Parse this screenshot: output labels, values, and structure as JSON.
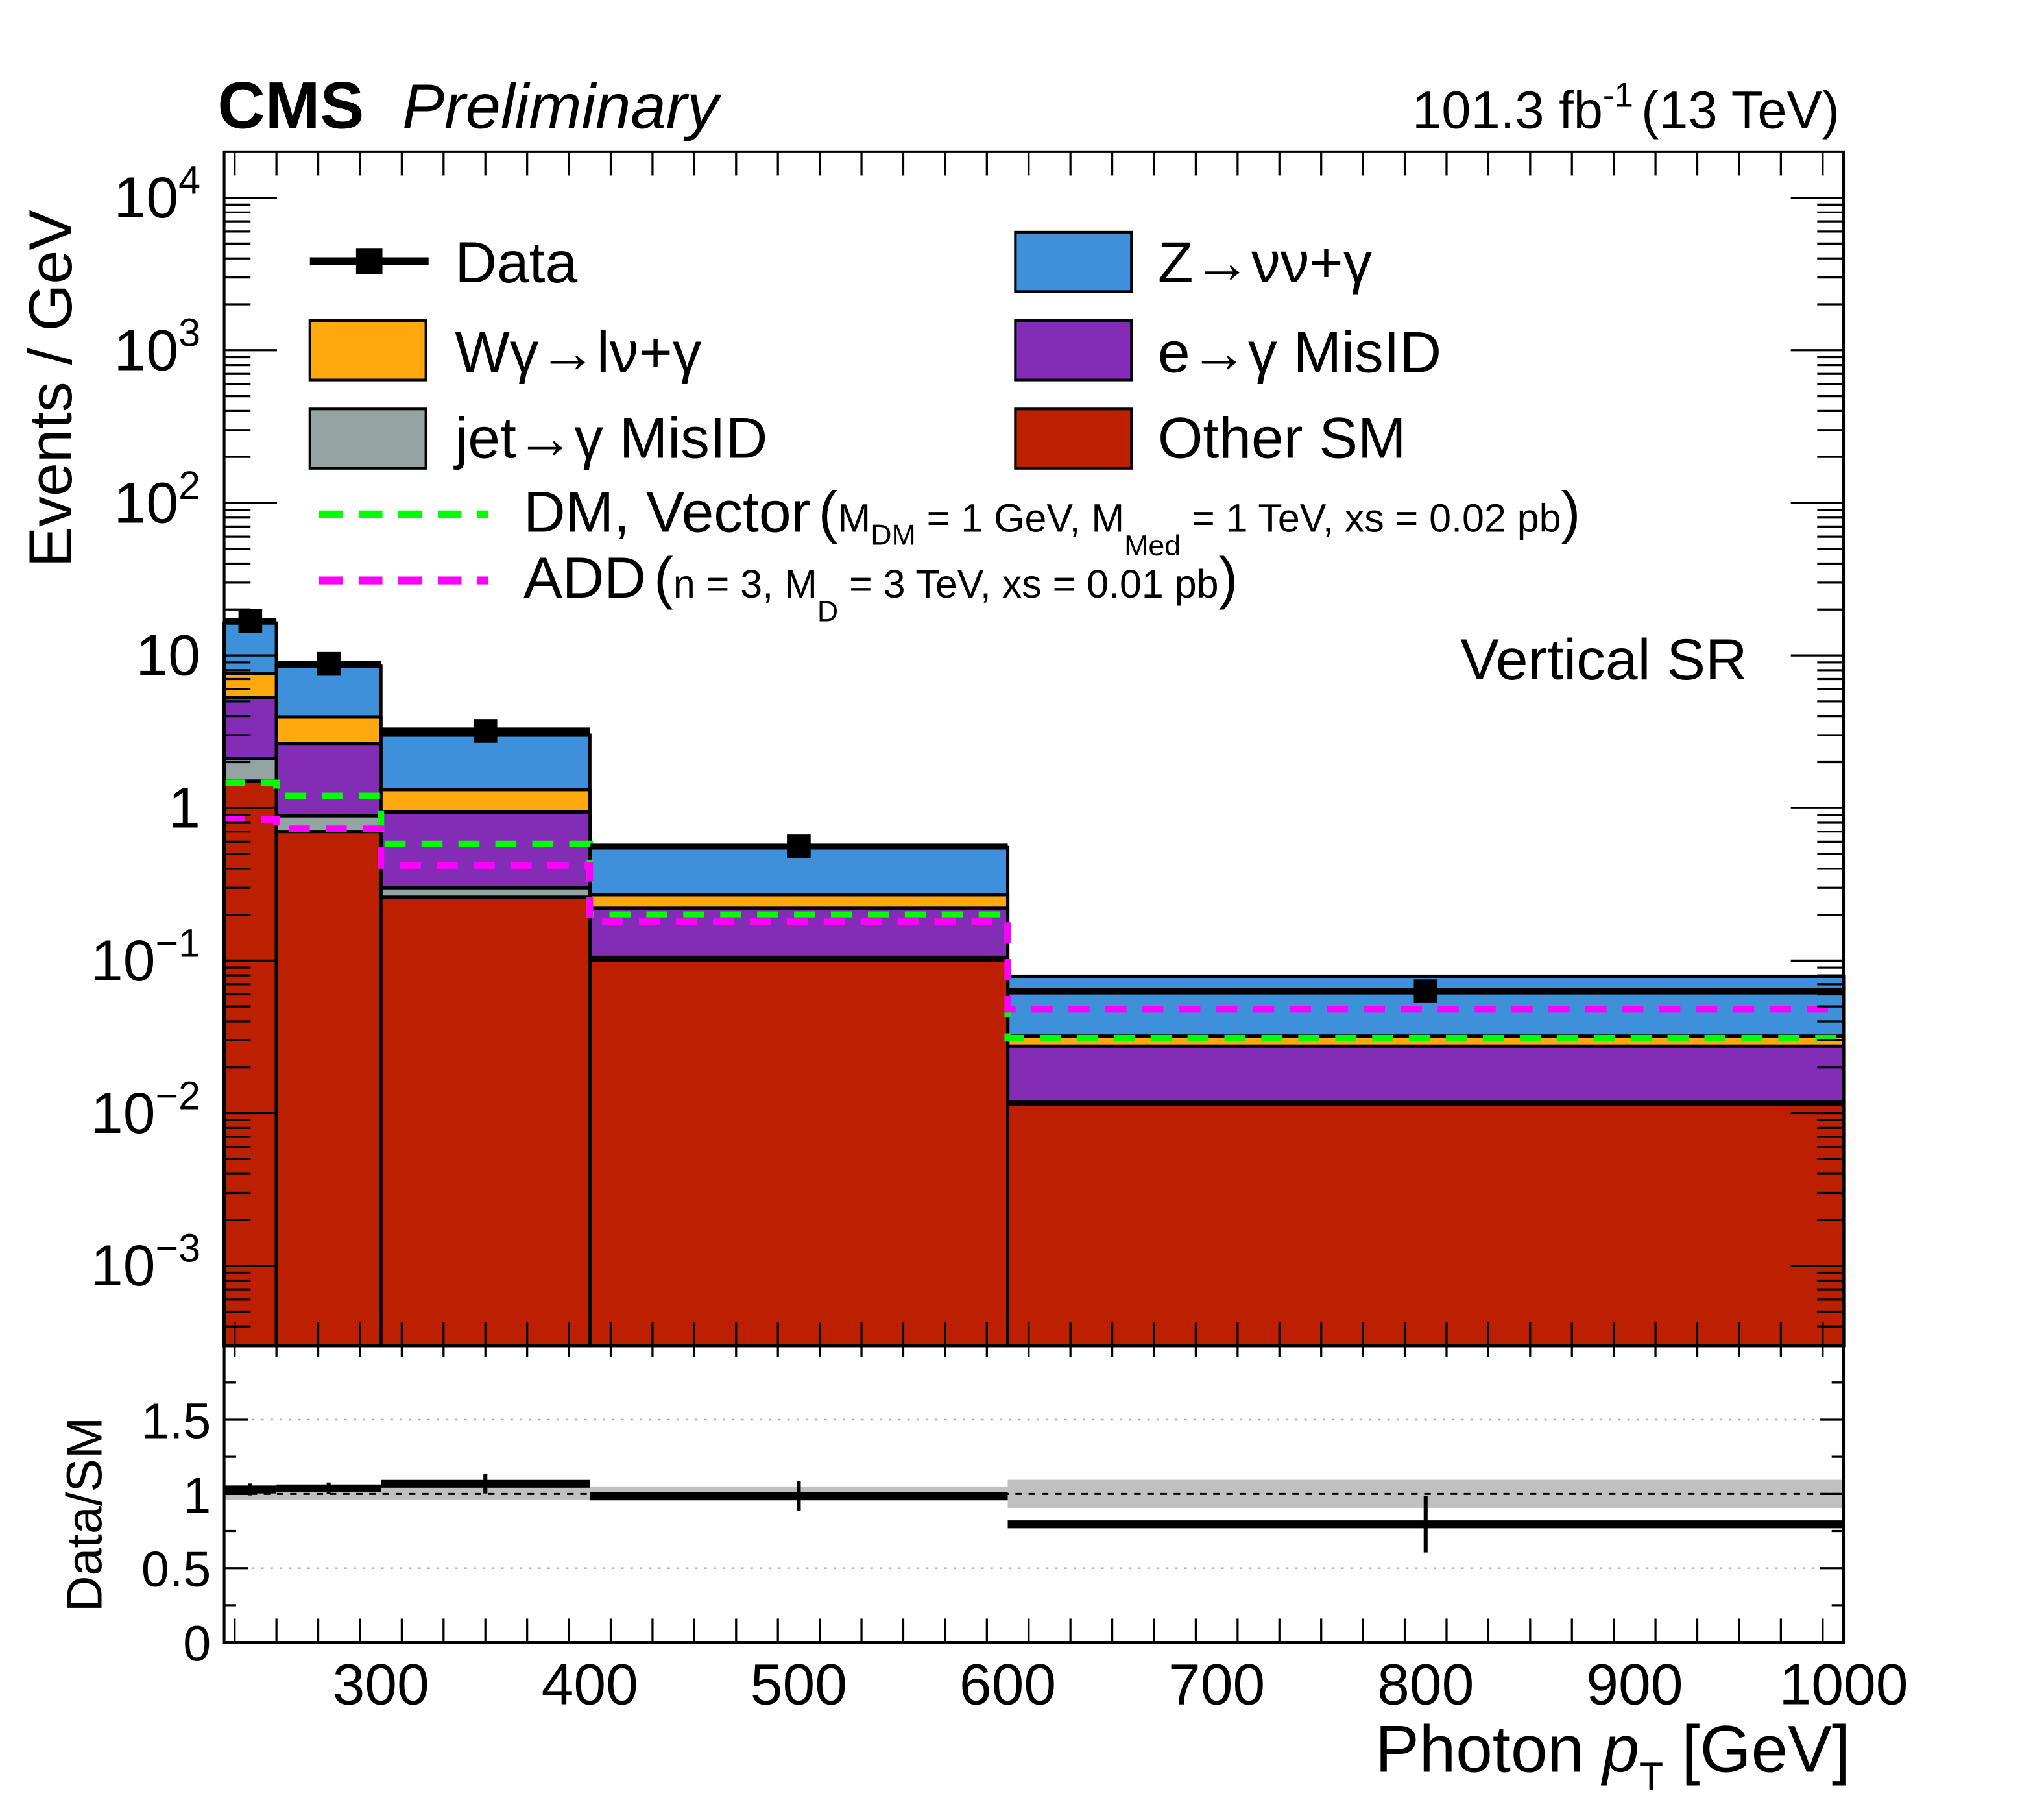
{
  "header": {
    "experiment": "CMS",
    "status": "Preliminary",
    "lumi": "101.3 fb",
    "lumi_exp": "-1",
    "energy": "(13 TeV)"
  },
  "region_label": "Vertical SR",
  "chart_data": {
    "type": "bar",
    "title": "",
    "xlabel_main": "Photon ",
    "xlabel_var": "p",
    "xlabel_sub": "T",
    "xlabel_unit": " [GeV]",
    "ylabel": "Events / GeV",
    "ratio_ylabel": "Data/SM",
    "xlim": [
      225,
      1000
    ],
    "ylim": [
      0.0003,
      20000
    ],
    "ratio_ylim": [
      0,
      2
    ],
    "bin_edges": [
      225,
      250,
      300,
      400,
      600,
      1000
    ],
    "x_ticks": [
      "300",
      "400",
      "500",
      "600",
      "700",
      "800",
      "900",
      "1000"
    ],
    "y_ticks": [
      {
        "base": "10",
        "exp": "4"
      },
      {
        "base": "10",
        "exp": "3"
      },
      {
        "base": "10",
        "exp": "2"
      },
      {
        "base": "10",
        "exp": ""
      },
      {
        "base": "1",
        "exp": ""
      },
      {
        "base": "10",
        "exp": "−1"
      },
      {
        "base": "10",
        "exp": "−2"
      },
      {
        "base": "10",
        "exp": "−3"
      }
    ],
    "ratio_y_ticks": [
      "0",
      "0.5",
      "1",
      "1.5"
    ],
    "stack": [
      {
        "name": "Other SM",
        "color": "#bd1f01",
        "values": [
          1.5,
          0.7,
          0.26,
          0.1,
          0.0114
        ]
      },
      {
        "name": "jet→γ MisID",
        "color": "#94a4a2",
        "values": [
          0.6,
          0.19,
          0.04,
          0.005,
          0.0004
        ]
      },
      {
        "name": "e→γ MisID",
        "color": "#832db6",
        "values": [
          3.2,
          1.76,
          0.64,
          0.115,
          0.0157
        ]
      },
      {
        "name": "Wγ→lν+γ",
        "color": "#ffa90e",
        "values": [
          2.3,
          1.3,
          0.38,
          0.05,
          0.0045
        ]
      },
      {
        "name": "Z→νν+γ",
        "color": "#3f90da",
        "values": [
          8.7,
          4.55,
          1.68,
          0.28,
          0.047
        ]
      }
    ],
    "data": {
      "name": "Data",
      "values": [
        16.8,
        8.8,
        3.2,
        0.56,
        0.063
      ]
    },
    "signals": [
      {
        "name": "DM, Vector",
        "color": "#00ff00",
        "values": [
          1.46,
          1.2,
          0.58,
          0.2,
          0.031
        ],
        "detail": [
          "M",
          "DM",
          " = 1 GeV, M",
          "Med",
          " = 1 TeV, xs = 0.02 pb"
        ]
      },
      {
        "name": "ADD",
        "color": "#ff00ff",
        "values": [
          0.84,
          0.73,
          0.42,
          0.18,
          0.048
        ],
        "detail": [
          "n = 3, M",
          "D",
          " = 3 TeV, xs = 0.01 pb"
        ]
      }
    ],
    "ratio": {
      "values": [
        1.03,
        1.037,
        1.068,
        0.987,
        0.795
      ],
      "errors": [
        0.04,
        0.04,
        0.065,
        0.1,
        0.19
      ],
      "band": [
        0.04,
        0.04,
        0.04,
        0.05,
        0.095
      ]
    }
  }
}
